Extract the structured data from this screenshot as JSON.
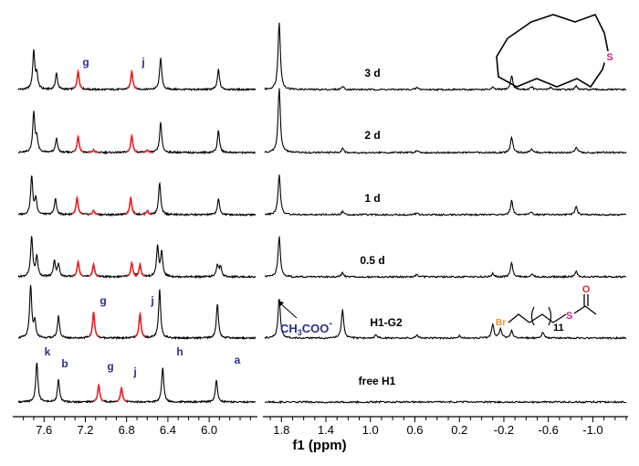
{
  "chart_data": {
    "type": "line",
    "title": "",
    "xlabel": "f1 (ppm)",
    "ylabel": "",
    "x_reversed": true,
    "xlim_left_panel": [
      7.85,
      5.55
    ],
    "xlim_right_panel": [
      1.95,
      -1.3
    ],
    "ticks_left": [
      "7.6",
      "7.2",
      "6.8",
      "6.4",
      "6.0"
    ],
    "ticks_right": [
      "1.8",
      "1.4",
      "1.0",
      "0.6",
      "0.2",
      "-0.2",
      "-0.6",
      "-1.0"
    ],
    "colors": {
      "trace": "#000000",
      "highlight": "#e8262a",
      "label": "#2b2f8f",
      "sulfur": "#e0198a",
      "bromine": "#f0901e"
    },
    "series": [
      {
        "name": "3 d",
        "peaks": [
          {
            "ppm": 7.7,
            "height": 0.95
          },
          {
            "ppm": 7.67,
            "height": 0.35
          },
          {
            "ppm": 7.48,
            "height": 0.4
          },
          {
            "ppm": 7.27,
            "height": 0.45,
            "highlight": true
          },
          {
            "ppm": 6.75,
            "height": 0.45,
            "highlight": true
          },
          {
            "ppm": 6.47,
            "height": 0.8
          },
          {
            "ppm": 5.91,
            "height": 0.5
          },
          {
            "ppm": 1.82,
            "height": 1.7
          },
          {
            "ppm": 1.25,
            "height": 0.08
          },
          {
            "ppm": 0.58,
            "height": 0.05
          },
          {
            "ppm": -0.1,
            "height": 0.05
          },
          {
            "ppm": -0.27,
            "height": 0.35
          },
          {
            "ppm": -0.45,
            "height": 0.07
          },
          {
            "ppm": -0.62,
            "height": 0.06
          },
          {
            "ppm": -0.85,
            "height": 0.08
          }
        ]
      },
      {
        "name": "2 d",
        "peaks": [
          {
            "ppm": 7.7,
            "height": 1.0
          },
          {
            "ppm": 7.67,
            "height": 0.35
          },
          {
            "ppm": 7.48,
            "height": 0.35
          },
          {
            "ppm": 7.27,
            "height": 0.4,
            "highlight": true
          },
          {
            "ppm": 7.12,
            "height": 0.06,
            "highlight": true
          },
          {
            "ppm": 6.75,
            "height": 0.42,
            "highlight": true
          },
          {
            "ppm": 6.6,
            "height": 0.06,
            "highlight": true
          },
          {
            "ppm": 6.47,
            "height": 0.75
          },
          {
            "ppm": 5.91,
            "height": 0.55
          },
          {
            "ppm": 1.82,
            "height": 1.6
          },
          {
            "ppm": 1.25,
            "height": 0.1
          },
          {
            "ppm": 0.58,
            "height": 0.06
          },
          {
            "ppm": -0.27,
            "height": 0.4
          },
          {
            "ppm": -0.45,
            "height": 0.08
          },
          {
            "ppm": -0.85,
            "height": 0.15
          }
        ]
      },
      {
        "name": "1 d",
        "peaks": [
          {
            "ppm": 7.72,
            "height": 0.95
          },
          {
            "ppm": 7.68,
            "height": 0.4
          },
          {
            "ppm": 7.49,
            "height": 0.4
          },
          {
            "ppm": 7.28,
            "height": 0.42,
            "highlight": true
          },
          {
            "ppm": 7.12,
            "height": 0.1,
            "highlight": true
          },
          {
            "ppm": 6.76,
            "height": 0.42,
            "highlight": true
          },
          {
            "ppm": 6.6,
            "height": 0.1,
            "highlight": true
          },
          {
            "ppm": 6.48,
            "height": 0.8
          },
          {
            "ppm": 5.91,
            "height": 0.4
          },
          {
            "ppm": 1.82,
            "height": 1.0
          },
          {
            "ppm": 1.25,
            "height": 0.08
          },
          {
            "ppm": 0.58,
            "height": 0.05
          },
          {
            "ppm": -0.27,
            "height": 0.35
          },
          {
            "ppm": -0.45,
            "height": 0.08
          },
          {
            "ppm": -0.85,
            "height": 0.2
          }
        ]
      },
      {
        "name": "0.5 d",
        "peaks": [
          {
            "ppm": 7.72,
            "height": 1.0
          },
          {
            "ppm": 7.67,
            "height": 0.5
          },
          {
            "ppm": 7.5,
            "height": 0.4
          },
          {
            "ppm": 7.46,
            "height": 0.3
          },
          {
            "ppm": 7.27,
            "height": 0.38,
            "highlight": true
          },
          {
            "ppm": 7.12,
            "height": 0.3,
            "highlight": true
          },
          {
            "ppm": 6.75,
            "height": 0.35,
            "highlight": true
          },
          {
            "ppm": 6.67,
            "height": 0.3,
            "highlight": true
          },
          {
            "ppm": 6.5,
            "height": 0.75
          },
          {
            "ppm": 6.46,
            "height": 0.6
          },
          {
            "ppm": 5.92,
            "height": 0.3
          },
          {
            "ppm": 5.89,
            "height": 0.25
          },
          {
            "ppm": 1.82,
            "height": 1.0
          },
          {
            "ppm": 1.25,
            "height": 0.1
          },
          {
            "ppm": 0.58,
            "height": 0.06
          },
          {
            "ppm": -0.1,
            "height": 0.08
          },
          {
            "ppm": -0.27,
            "height": 0.35
          },
          {
            "ppm": -0.45,
            "height": 0.08
          },
          {
            "ppm": -0.85,
            "height": 0.15
          }
        ]
      },
      {
        "name": "H1-G2",
        "peaks": [
          {
            "ppm": 7.73,
            "height": 1.3
          },
          {
            "ppm": 7.69,
            "height": 0.4
          },
          {
            "ppm": 7.46,
            "height": 0.55
          },
          {
            "ppm": 7.12,
            "height": 0.65,
            "highlight": true
          },
          {
            "ppm": 6.67,
            "height": 0.6,
            "highlight": true
          },
          {
            "ppm": 6.48,
            "height": 1.2
          },
          {
            "ppm": 5.92,
            "height": 0.85
          },
          {
            "ppm": 1.82,
            "height": 1.0
          },
          {
            "ppm": 1.25,
            "height": 0.7
          },
          {
            "ppm": 0.95,
            "height": 0.08
          },
          {
            "ppm": 0.58,
            "height": 0.07
          },
          {
            "ppm": 0.2,
            "height": 0.05
          },
          {
            "ppm": -0.1,
            "height": 0.35
          },
          {
            "ppm": -0.17,
            "height": 0.25
          },
          {
            "ppm": -0.27,
            "height": 0.18
          },
          {
            "ppm": -0.55,
            "height": 0.15
          }
        ]
      },
      {
        "name": "free H1",
        "peaks": [
          {
            "ppm": 7.67,
            "height": 1.0
          },
          {
            "ppm": 7.46,
            "height": 0.55
          },
          {
            "ppm": 7.07,
            "height": 0.42,
            "highlight": true
          },
          {
            "ppm": 6.85,
            "height": 0.35,
            "highlight": true
          },
          {
            "ppm": 6.45,
            "height": 0.85
          },
          {
            "ppm": 5.93,
            "height": 0.55
          }
        ]
      }
    ],
    "annotations": {
      "top_row": [
        "g",
        "j"
      ],
      "h1g2_row": [
        "g",
        "j"
      ],
      "free_row": [
        "k",
        "b",
        "g",
        "j",
        "h",
        "a"
      ],
      "acetate": {
        "text_main": "CH",
        "sub1": "3",
        "mid": "COO",
        "sup": "-"
      },
      "structure_labels": {
        "sulfur": "S",
        "bromine": "Br",
        "oxygen": "O",
        "repeat": "11"
      }
    }
  }
}
